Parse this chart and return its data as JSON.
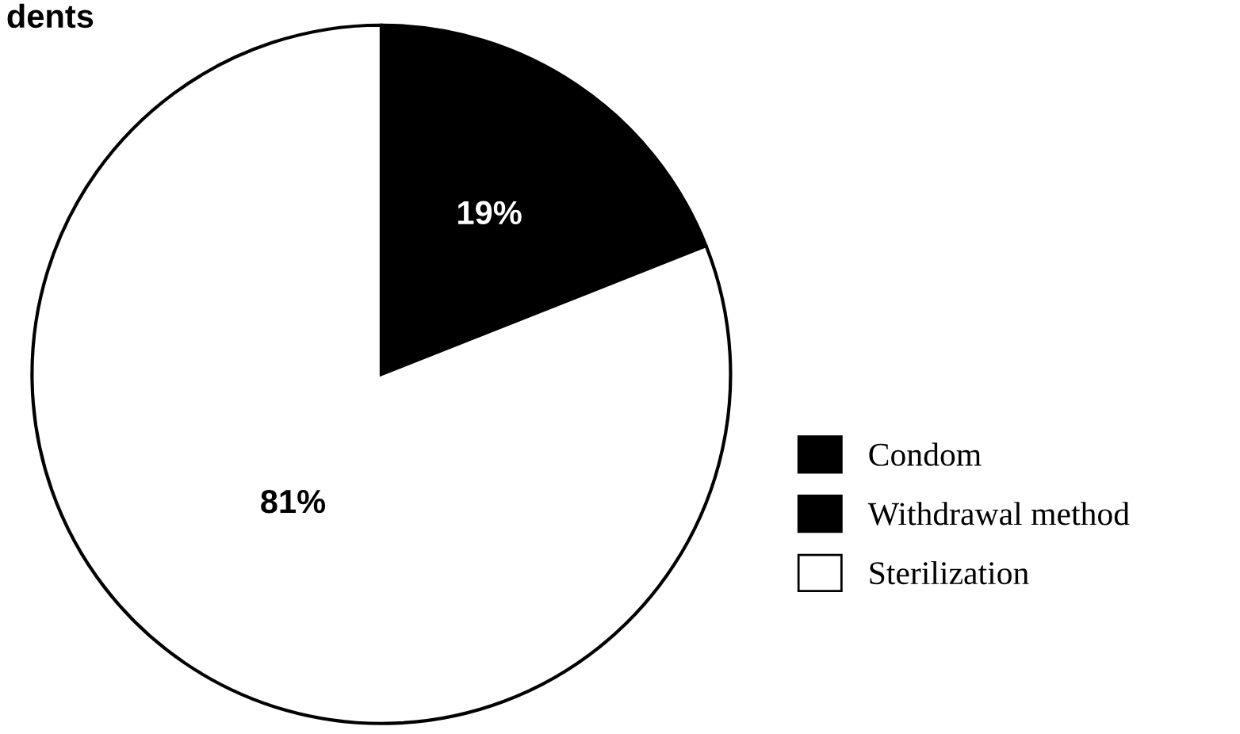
{
  "chart_data": {
    "type": "pie",
    "title": "dents",
    "categories": [
      "Condom",
      "Withdrawal method",
      "Sterilization"
    ],
    "values": [
      19,
      0,
      81
    ],
    "colors": [
      "#000000",
      "#000000",
      "#ffffff"
    ],
    "value_labels": [
      "19%",
      null,
      "81%"
    ],
    "legend": "right"
  }
}
